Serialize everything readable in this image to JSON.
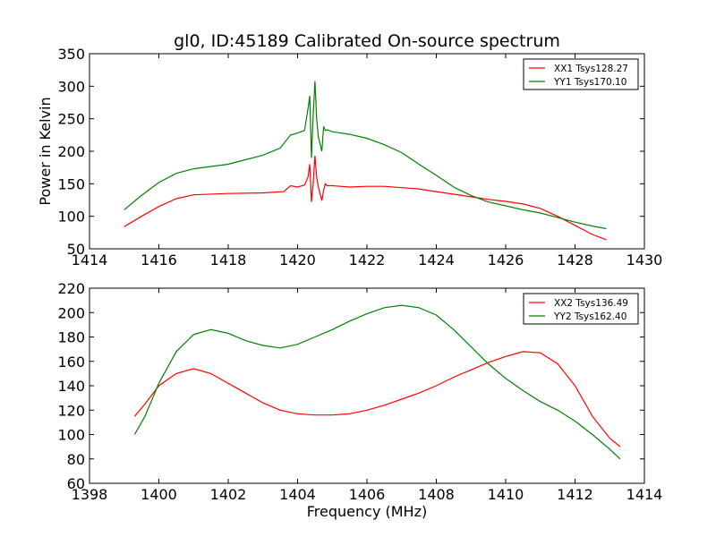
{
  "title": "gl0, ID:45189 Calibrated On-source spectrum",
  "colors": {
    "red": "#ff0000",
    "green": "#008000"
  },
  "chart_data": [
    {
      "type": "line",
      "ylabel": "Power in Kelvin",
      "xlabel": "",
      "xlim": [
        1414,
        1430
      ],
      "ylim": [
        50,
        350
      ],
      "xticks": [
        1414,
        1416,
        1418,
        1420,
        1422,
        1424,
        1426,
        1428,
        1430
      ],
      "yticks": [
        50,
        100,
        150,
        200,
        250,
        300,
        350
      ],
      "legend_position": "upper right",
      "series": [
        {
          "name": "XX1 Tsys128.27",
          "color": "#ff0000",
          "x": [
            1415.0,
            1415.5,
            1416.0,
            1416.5,
            1417.0,
            1418.0,
            1419.0,
            1419.6,
            1419.8,
            1420.0,
            1420.2,
            1420.3,
            1420.35,
            1420.4,
            1420.45,
            1420.5,
            1420.55,
            1420.6,
            1420.7,
            1420.75,
            1420.8,
            1420.85,
            1421.0,
            1421.5,
            1422.0,
            1422.5,
            1423.0,
            1423.5,
            1424.0,
            1424.5,
            1425.0,
            1425.5,
            1426.0,
            1426.5,
            1427.0,
            1427.5,
            1428.0,
            1428.5,
            1428.9
          ],
          "y": [
            84,
            100,
            115,
            127,
            133,
            135,
            136,
            138,
            147,
            145,
            148,
            160,
            180,
            122,
            150,
            193,
            160,
            145,
            124,
            140,
            150,
            147,
            147,
            145,
            146,
            146,
            144,
            142,
            138,
            134,
            130,
            126,
            123,
            119,
            112,
            100,
            86,
            72,
            64
          ]
        },
        {
          "name": "YY1 Tsys170.10",
          "color": "#008000",
          "x": [
            1415.0,
            1415.5,
            1416.0,
            1416.5,
            1417.0,
            1418.0,
            1419.0,
            1419.5,
            1419.8,
            1420.0,
            1420.2,
            1420.3,
            1420.35,
            1420.4,
            1420.45,
            1420.5,
            1420.55,
            1420.6,
            1420.7,
            1420.75,
            1420.8,
            1420.85,
            1421.0,
            1421.5,
            1422.0,
            1422.5,
            1423.0,
            1423.5,
            1424.0,
            1424.5,
            1425.0,
            1425.5,
            1426.0,
            1426.5,
            1427.0,
            1427.5,
            1428.0,
            1428.5,
            1428.9
          ],
          "y": [
            110,
            132,
            152,
            166,
            173,
            180,
            194,
            205,
            225,
            228,
            232,
            265,
            285,
            190,
            255,
            308,
            250,
            222,
            200,
            238,
            232,
            233,
            230,
            226,
            220,
            210,
            198,
            180,
            163,
            145,
            132,
            122,
            116,
            110,
            105,
            98,
            91,
            85,
            81
          ]
        }
      ]
    },
    {
      "type": "line",
      "ylabel": "",
      "xlabel": "Frequency (MHz)",
      "xlim": [
        1398,
        1414
      ],
      "ylim": [
        60,
        220
      ],
      "xticks": [
        1398,
        1400,
        1402,
        1404,
        1406,
        1408,
        1410,
        1412,
        1414
      ],
      "yticks": [
        60,
        80,
        100,
        120,
        140,
        160,
        180,
        200,
        220
      ],
      "legend_position": "upper right",
      "series": [
        {
          "name": "XX2 Tsys136.49",
          "color": "#ff0000",
          "x": [
            1399.3,
            1399.6,
            1400.0,
            1400.5,
            1401.0,
            1401.5,
            1402.0,
            1402.5,
            1403.0,
            1403.5,
            1404.0,
            1404.5,
            1405.0,
            1405.5,
            1406.0,
            1406.5,
            1407.0,
            1407.5,
            1408.0,
            1408.5,
            1409.0,
            1409.5,
            1410.0,
            1410.5,
            1411.0,
            1411.5,
            1412.0,
            1412.5,
            1413.0,
            1413.3
          ],
          "y": [
            115,
            125,
            140,
            150,
            154,
            150,
            142,
            134,
            126,
            120,
            117,
            116,
            116,
            117,
            120,
            124,
            129,
            134,
            140,
            147,
            153,
            159,
            164,
            168,
            167,
            158,
            140,
            115,
            97,
            90
          ]
        },
        {
          "name": "YY2 Tsys162.40",
          "color": "#008000",
          "x": [
            1399.3,
            1399.6,
            1400.0,
            1400.5,
            1401.0,
            1401.5,
            1402.0,
            1402.5,
            1403.0,
            1403.5,
            1404.0,
            1404.5,
            1405.0,
            1405.5,
            1406.0,
            1406.5,
            1407.0,
            1407.5,
            1408.0,
            1408.5,
            1409.0,
            1409.5,
            1410.0,
            1410.5,
            1411.0,
            1411.5,
            1412.0,
            1412.5,
            1413.0,
            1413.3
          ],
          "y": [
            100,
            115,
            142,
            168,
            182,
            186,
            183,
            177,
            173,
            171,
            174,
            180,
            186,
            193,
            199,
            204,
            206,
            204,
            198,
            186,
            172,
            158,
            146,
            136,
            127,
            120,
            111,
            100,
            88,
            80
          ]
        }
      ]
    }
  ]
}
